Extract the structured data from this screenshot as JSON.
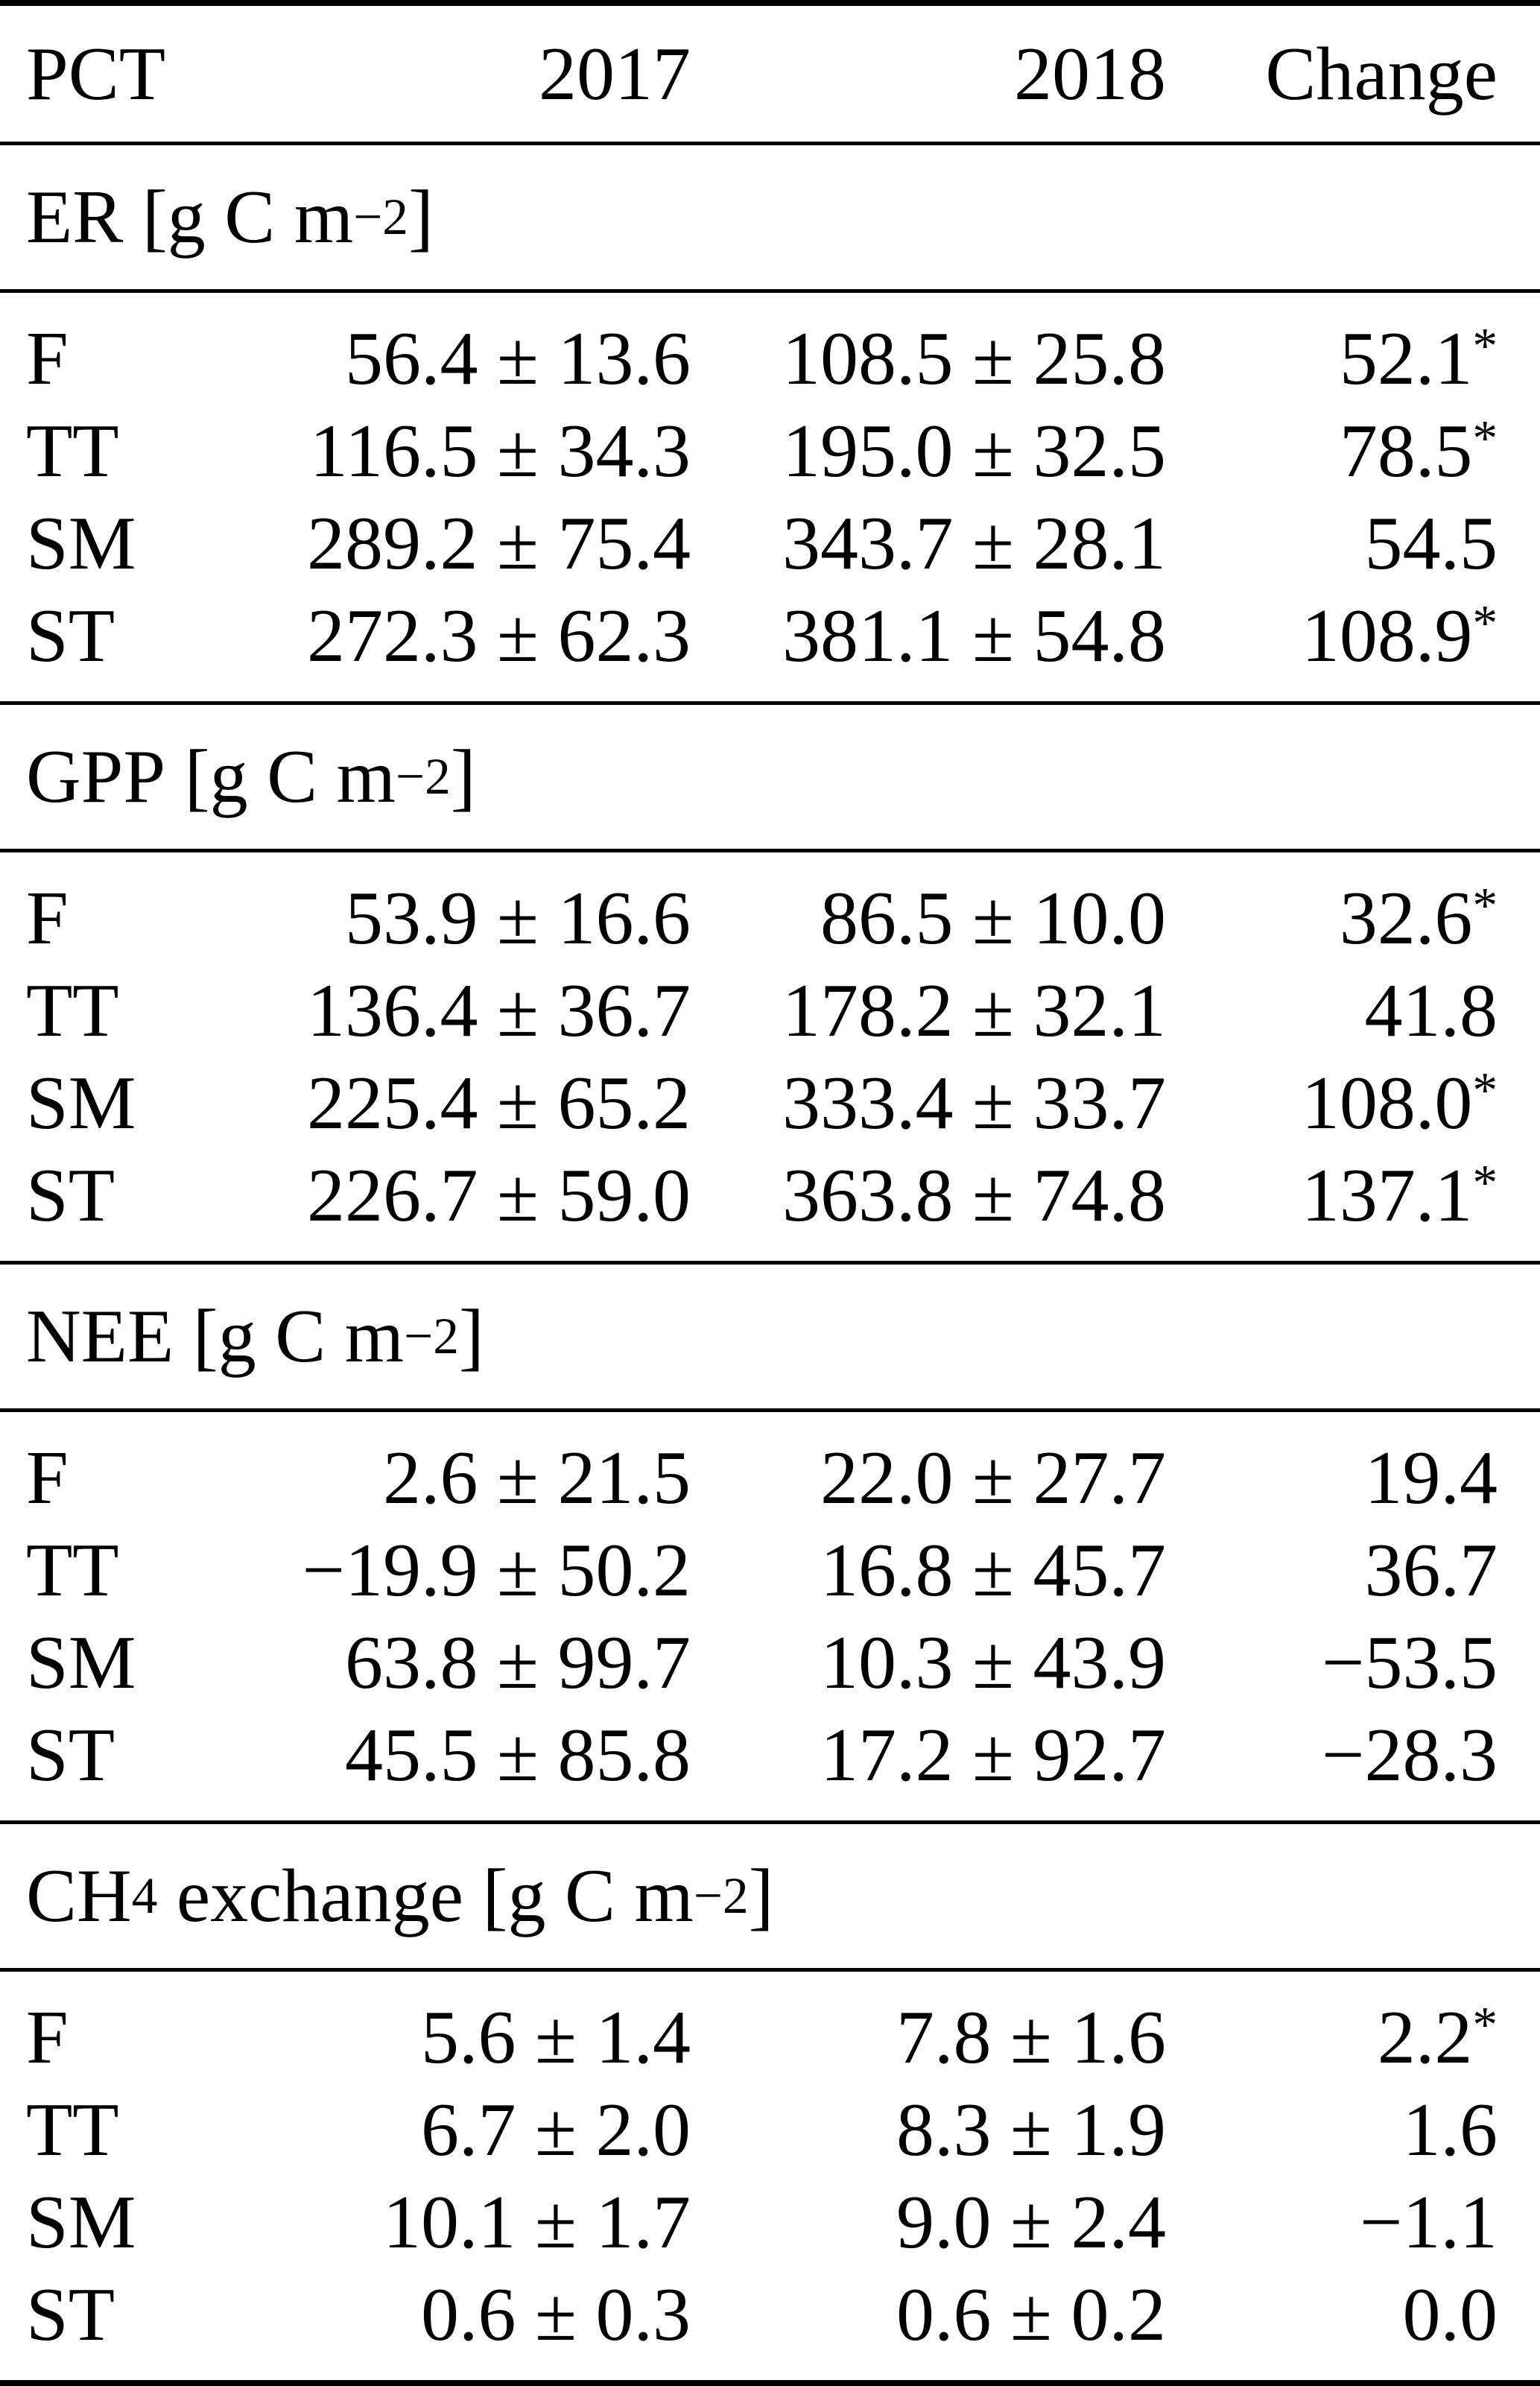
{
  "table": {
    "colors": {
      "background": "#ffffff",
      "text": "#000000",
      "rule": "#000000"
    },
    "columns": [
      "PCT",
      "2017",
      "2018",
      "Change"
    ],
    "sections": [
      {
        "label_prefix": "ER",
        "label_sub": "",
        "label_mid": " [g C m",
        "label_sup": "−2",
        "label_end": "]",
        "rows": [
          {
            "pct": "F",
            "v2017": "56.4 ± 13.6",
            "v2018": "108.5 ± 25.8",
            "change": "52.1",
            "star": "*"
          },
          {
            "pct": "TT",
            "v2017": "116.5 ± 34.3",
            "v2018": "195.0 ± 32.5",
            "change": "78.5",
            "star": "*"
          },
          {
            "pct": "SM",
            "v2017": "289.2 ± 75.4",
            "v2018": "343.7 ± 28.1",
            "change": "54.5",
            "star": ""
          },
          {
            "pct": "ST",
            "v2017": "272.3 ± 62.3",
            "v2018": "381.1 ± 54.8",
            "change": "108.9",
            "star": "*"
          }
        ]
      },
      {
        "label_prefix": "GPP",
        "label_sub": "",
        "label_mid": " [g C m",
        "label_sup": "−2",
        "label_end": "]",
        "rows": [
          {
            "pct": "F",
            "v2017": "53.9 ± 16.6",
            "v2018": "86.5 ± 10.0",
            "change": "32.6",
            "star": "*"
          },
          {
            "pct": "TT",
            "v2017": "136.4 ± 36.7",
            "v2018": "178.2 ± 32.1",
            "change": "41.8",
            "star": ""
          },
          {
            "pct": "SM",
            "v2017": "225.4 ± 65.2",
            "v2018": "333.4 ± 33.7",
            "change": "108.0",
            "star": "*"
          },
          {
            "pct": "ST",
            "v2017": "226.7 ± 59.0",
            "v2018": "363.8 ± 74.8",
            "change": "137.1",
            "star": "*"
          }
        ]
      },
      {
        "label_prefix": "NEE",
        "label_sub": "",
        "label_mid": " [g C m",
        "label_sup": "−2",
        "label_end": "]",
        "rows": [
          {
            "pct": "F",
            "v2017": "2.6 ± 21.5",
            "v2018": "22.0 ± 27.7",
            "change": "19.4",
            "star": ""
          },
          {
            "pct": "TT",
            "v2017": "−19.9 ± 50.2",
            "v2018": "16.8 ± 45.7",
            "change": "36.7",
            "star": ""
          },
          {
            "pct": "SM",
            "v2017": "63.8 ± 99.7",
            "v2018": "10.3 ± 43.9",
            "change": "−53.5",
            "star": ""
          },
          {
            "pct": "ST",
            "v2017": "45.5 ± 85.8",
            "v2018": "17.2 ± 92.7",
            "change": "−28.3",
            "star": ""
          }
        ]
      },
      {
        "label_prefix": "CH",
        "label_sub": "4",
        "label_mid": " exchange [g C m",
        "label_sup": "−2",
        "label_end": "]",
        "rows": [
          {
            "pct": "F",
            "v2017": "5.6 ± 1.4",
            "v2018": "7.8 ± 1.6",
            "change": "2.2",
            "star": "*"
          },
          {
            "pct": "TT",
            "v2017": "6.7 ± 2.0",
            "v2018": "8.3 ± 1.9",
            "change": "1.6",
            "star": ""
          },
          {
            "pct": "SM",
            "v2017": "10.1 ± 1.7",
            "v2018": "9.0 ± 2.4",
            "change": "−1.1",
            "star": ""
          },
          {
            "pct": "ST",
            "v2017": "0.6 ± 0.3",
            "v2018": "0.6 ± 0.2",
            "change": "0.0",
            "star": ""
          }
        ]
      }
    ]
  }
}
